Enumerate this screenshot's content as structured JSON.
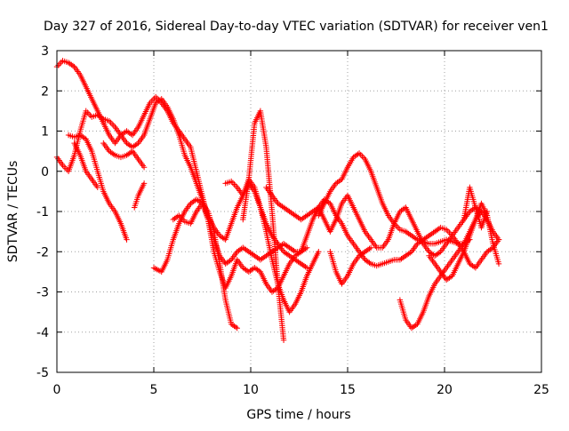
{
  "chart_data": {
    "type": "scatter",
    "title": "Day 327 of 2016, Sidereal Day-to-day VTEC variation (SDTVAR) for receiver ven1",
    "xlabel": "GPS time / hours",
    "ylabel": "SDTVAR / TECUs",
    "xlim": [
      0,
      25
    ],
    "ylim": [
      -5,
      3
    ],
    "xticks": [
      "0",
      "5",
      "10",
      "15",
      "20",
      "25"
    ],
    "yticks": [
      "-5",
      "-4",
      "-3",
      "-2",
      "-1",
      "0",
      "1",
      "2",
      "3"
    ],
    "grid": true,
    "legend": "none",
    "marker": "plus",
    "series_color": "#ff0000",
    "series": [
      {
        "x": [
          0,
          0.3,
          0.6,
          0.9,
          1.2,
          1.5,
          1.8,
          2.1,
          2.4,
          2.7,
          3.0,
          3.3,
          3.6,
          3.9,
          4.2,
          4.5,
          4.8,
          5.1,
          5.4,
          5.7,
          6.0,
          6.3,
          6.6,
          6.9,
          7.2,
          7.5,
          7.8,
          8.1,
          8.4,
          8.7,
          9.0,
          9.3,
          9.6,
          9.9,
          10.2,
          10.5,
          10.8,
          11.1,
          11.4,
          11.7,
          12.0,
          12.3,
          12.6,
          12.9
        ],
        "y": [
          2.6,
          2.75,
          2.7,
          2.6,
          2.4,
          2.1,
          1.8,
          1.5,
          1.2,
          0.9,
          0.7,
          0.9,
          1.0,
          0.9,
          1.1,
          1.4,
          1.7,
          1.85,
          1.7,
          1.5,
          1.2,
          1.0,
          0.8,
          0.6,
          0.0,
          -0.6,
          -1.2,
          -2.0,
          -2.5,
          -2.9,
          -2.6,
          -2.2,
          -2.4,
          -2.5,
          -2.4,
          -2.5,
          -2.8,
          -3.0,
          -2.9,
          -2.6,
          -2.3,
          -2.1,
          -2.0,
          -1.9
        ]
      },
      {
        "x": [
          0,
          0.3,
          0.6,
          0.9,
          1.2,
          1.5,
          1.8,
          2.1,
          2.4,
          2.7,
          3.0,
          3.3,
          3.6,
          3.9,
          4.2,
          4.5,
          4.8,
          5.1,
          5.4,
          5.7,
          6.0,
          6.3,
          6.6,
          6.9,
          7.2,
          7.5,
          7.8,
          8.1,
          8.4,
          8.7,
          9.0,
          9.3,
          9.6,
          9.9,
          10.2,
          10.5,
          10.8,
          11.1,
          11.4,
          11.7,
          12.0,
          12.3,
          12.6,
          12.9
        ],
        "y": [
          0.35,
          0.15,
          0.0,
          0.4,
          1.0,
          1.5,
          1.35,
          1.4,
          1.3,
          1.25,
          1.1,
          0.9,
          0.7,
          0.6,
          0.7,
          0.9,
          1.3,
          1.7,
          1.8,
          1.6,
          1.3,
          0.9,
          0.4,
          0.1,
          -0.3,
          -0.7,
          -1.1,
          -1.4,
          -1.6,
          -1.7,
          -1.3,
          -0.9,
          -0.6,
          -0.3,
          -0.5,
          -0.9,
          -1.3,
          -1.6,
          -1.8,
          -2.0,
          -2.1,
          -2.2,
          -2.3,
          -2.4
        ]
      },
      {
        "x": [
          0.6,
          0.9,
          1.2,
          1.5,
          1.8,
          2.1,
          2.4,
          2.7,
          3.0,
          3.3,
          3.6
        ],
        "y": [
          0.9,
          0.85,
          0.9,
          0.8,
          0.5,
          0.0,
          -0.5,
          -0.8,
          -1.0,
          -1.3,
          -1.7
        ]
      },
      {
        "x": [
          2.4,
          2.7,
          3.0,
          3.3,
          3.6,
          3.9,
          4.2,
          4.5
        ],
        "y": [
          0.7,
          0.5,
          0.4,
          0.35,
          0.4,
          0.5,
          0.3,
          0.1
        ]
      },
      {
        "x": [
          0.9,
          1.2,
          1.5,
          1.8,
          2.1
        ],
        "y": [
          0.7,
          0.4,
          0.0,
          -0.2,
          -0.4
        ]
      },
      {
        "x": [
          4.0,
          4.2,
          4.5
        ],
        "y": [
          -0.9,
          -0.6,
          -0.3
        ]
      },
      {
        "x": [
          5.0,
          5.4,
          5.7,
          6.0,
          6.3,
          6.6,
          6.9,
          7.2,
          7.5,
          7.8,
          8.1,
          8.4,
          8.7,
          9.0,
          9.3,
          9.6,
          9.9,
          10.2,
          10.5,
          10.8,
          11.1,
          11.4,
          11.7,
          12.0,
          12.3,
          12.6,
          12.9,
          13.2,
          13.5,
          13.8,
          14.1,
          14.4,
          14.7,
          15.0,
          15.3,
          15.6,
          15.9,
          16.2,
          16.5,
          16.8,
          17.1,
          17.4,
          17.7,
          18.0,
          18.3,
          18.6,
          18.9,
          19.2,
          19.5,
          19.8,
          20.1,
          20.4,
          20.7,
          21.0,
          21.3,
          21.6,
          21.9,
          22.2,
          22.5,
          22.8
        ],
        "y": [
          -2.4,
          -2.5,
          -2.2,
          -1.7,
          -1.3,
          -1.0,
          -0.8,
          -0.7,
          -0.8,
          -1.2,
          -1.7,
          -2.1,
          -2.3,
          -2.2,
          -2.0,
          -1.9,
          -2.0,
          -2.1,
          -2.2,
          -2.1,
          -2.0,
          -1.9,
          -1.8,
          -1.9,
          -2.0,
          -2.0,
          -1.6,
          -1.2,
          -0.9,
          -0.7,
          -0.8,
          -1.1,
          -1.3,
          -1.6,
          -1.8,
          -2.0,
          -2.2,
          -2.3,
          -2.35,
          -2.3,
          -2.25,
          -2.2,
          -2.2,
          -2.1,
          -2.0,
          -1.8,
          -1.7,
          -1.6,
          -1.5,
          -1.4,
          -1.45,
          -1.6,
          -1.8,
          -2.0,
          -2.3,
          -2.4,
          -2.2,
          -2.0,
          -1.9,
          -1.7
        ]
      },
      {
        "x": [
          6.0,
          6.3,
          6.6,
          6.9,
          7.2,
          7.5,
          7.8,
          8.1,
          8.4,
          8.7,
          9.0,
          9.3
        ],
        "y": [
          -1.2,
          -1.1,
          -1.25,
          -1.3,
          -1.0,
          -0.8,
          -1.0,
          -1.5,
          -2.3,
          -3.2,
          -3.8,
          -3.9
        ]
      },
      {
        "x": [
          8.7,
          9.0,
          9.3,
          9.6,
          9.9,
          10.2,
          10.5,
          10.8,
          11.1,
          11.4,
          11.7,
          12.0,
          12.3,
          12.6,
          12.9,
          13.2,
          13.5
        ],
        "y": [
          -0.3,
          -0.25,
          -0.4,
          -0.6,
          -0.2,
          -0.4,
          -0.9,
          -1.5,
          -2.2,
          -2.8,
          -3.2,
          -3.5,
          -3.3,
          -3.0,
          -2.6,
          -2.3,
          -2.0
        ]
      },
      {
        "x": [
          9.6,
          9.9,
          10.2,
          10.5,
          10.8,
          11.1,
          11.4,
          11.7
        ],
        "y": [
          -1.2,
          -0.2,
          1.2,
          1.5,
          0.6,
          -1.0,
          -2.8,
          -4.2
        ]
      },
      {
        "x": [
          10.8,
          11.1,
          11.4,
          11.7,
          12.0,
          12.3,
          12.6,
          12.9,
          13.2,
          13.5,
          13.8,
          14.1,
          14.4,
          14.7,
          15.0,
          15.3,
          15.6,
          15.9,
          16.2,
          16.5,
          16.8,
          17.1,
          17.4,
          17.7,
          18.0,
          18.3,
          18.6,
          18.9,
          19.2,
          19.5,
          19.8,
          20.1,
          20.4,
          20.7,
          21.0,
          21.3,
          21.6,
          21.9,
          22.2,
          22.5,
          22.8
        ],
        "y": [
          -0.4,
          -0.6,
          -0.8,
          -0.9,
          -1.0,
          -1.1,
          -1.2,
          -1.1,
          -1.0,
          -0.9,
          -1.2,
          -1.5,
          -1.2,
          -0.8,
          -0.6,
          -0.9,
          -1.2,
          -1.5,
          -1.7,
          -1.9,
          -1.9,
          -1.7,
          -1.3,
          -1.0,
          -0.9,
          -1.2,
          -1.5,
          -1.8,
          -2.0,
          -2.1,
          -2.0,
          -1.8,
          -1.6,
          -1.4,
          -1.2,
          -1.0,
          -0.9,
          -1.0,
          -1.2,
          -1.5,
          -1.7
        ]
      },
      {
        "x": [
          13.5,
          13.8,
          14.1,
          14.4,
          14.7,
          15.0,
          15.3,
          15.6,
          15.9,
          16.2,
          16.5,
          16.8,
          17.1,
          17.4,
          17.7,
          18.0,
          18.3,
          18.6,
          18.9,
          19.2,
          19.5,
          19.8,
          20.1,
          20.4,
          20.7,
          21.0,
          21.3
        ],
        "y": [
          -1.1,
          -0.8,
          -0.5,
          -0.3,
          -0.2,
          0.1,
          0.35,
          0.45,
          0.3,
          0.0,
          -0.4,
          -0.8,
          -1.1,
          -1.3,
          -1.45,
          -1.5,
          -1.6,
          -1.7,
          -1.75,
          -1.8,
          -1.8,
          -1.75,
          -1.7,
          -1.75,
          -1.8,
          -1.8,
          -1.7
        ]
      },
      {
        "x": [
          14.1,
          14.4,
          14.7,
          15.0,
          15.3,
          15.6,
          15.9,
          16.2
        ],
        "y": [
          -2.0,
          -2.5,
          -2.8,
          -2.6,
          -2.3,
          -2.1,
          -2.0,
          -1.9
        ]
      },
      {
        "x": [
          17.7,
          18.0,
          18.3,
          18.6,
          18.9,
          19.2,
          19.5,
          19.8,
          20.1,
          20.4,
          20.7,
          21.0,
          21.3,
          21.6,
          21.9
        ],
        "y": [
          -3.2,
          -3.7,
          -3.9,
          -3.8,
          -3.5,
          -3.1,
          -2.8,
          -2.6,
          -2.4,
          -2.2,
          -2.0,
          -1.8,
          -1.5,
          -1.2,
          -1.0
        ]
      },
      {
        "x": [
          19.2,
          19.5,
          19.8,
          20.1,
          20.4,
          20.7,
          21.0,
          21.3,
          21.6,
          21.9,
          22.2,
          22.5,
          22.8
        ],
        "y": [
          -2.1,
          -2.3,
          -2.5,
          -2.7,
          -2.6,
          -2.3,
          -2.0,
          -1.6,
          -1.2,
          -0.8,
          -1.1,
          -1.8,
          -2.3
        ]
      },
      {
        "x": [
          21.0,
          21.3,
          21.6,
          21.9,
          22.2
        ],
        "y": [
          -1.2,
          -0.4,
          -0.9,
          -1.4,
          -1.0
        ]
      }
    ]
  }
}
